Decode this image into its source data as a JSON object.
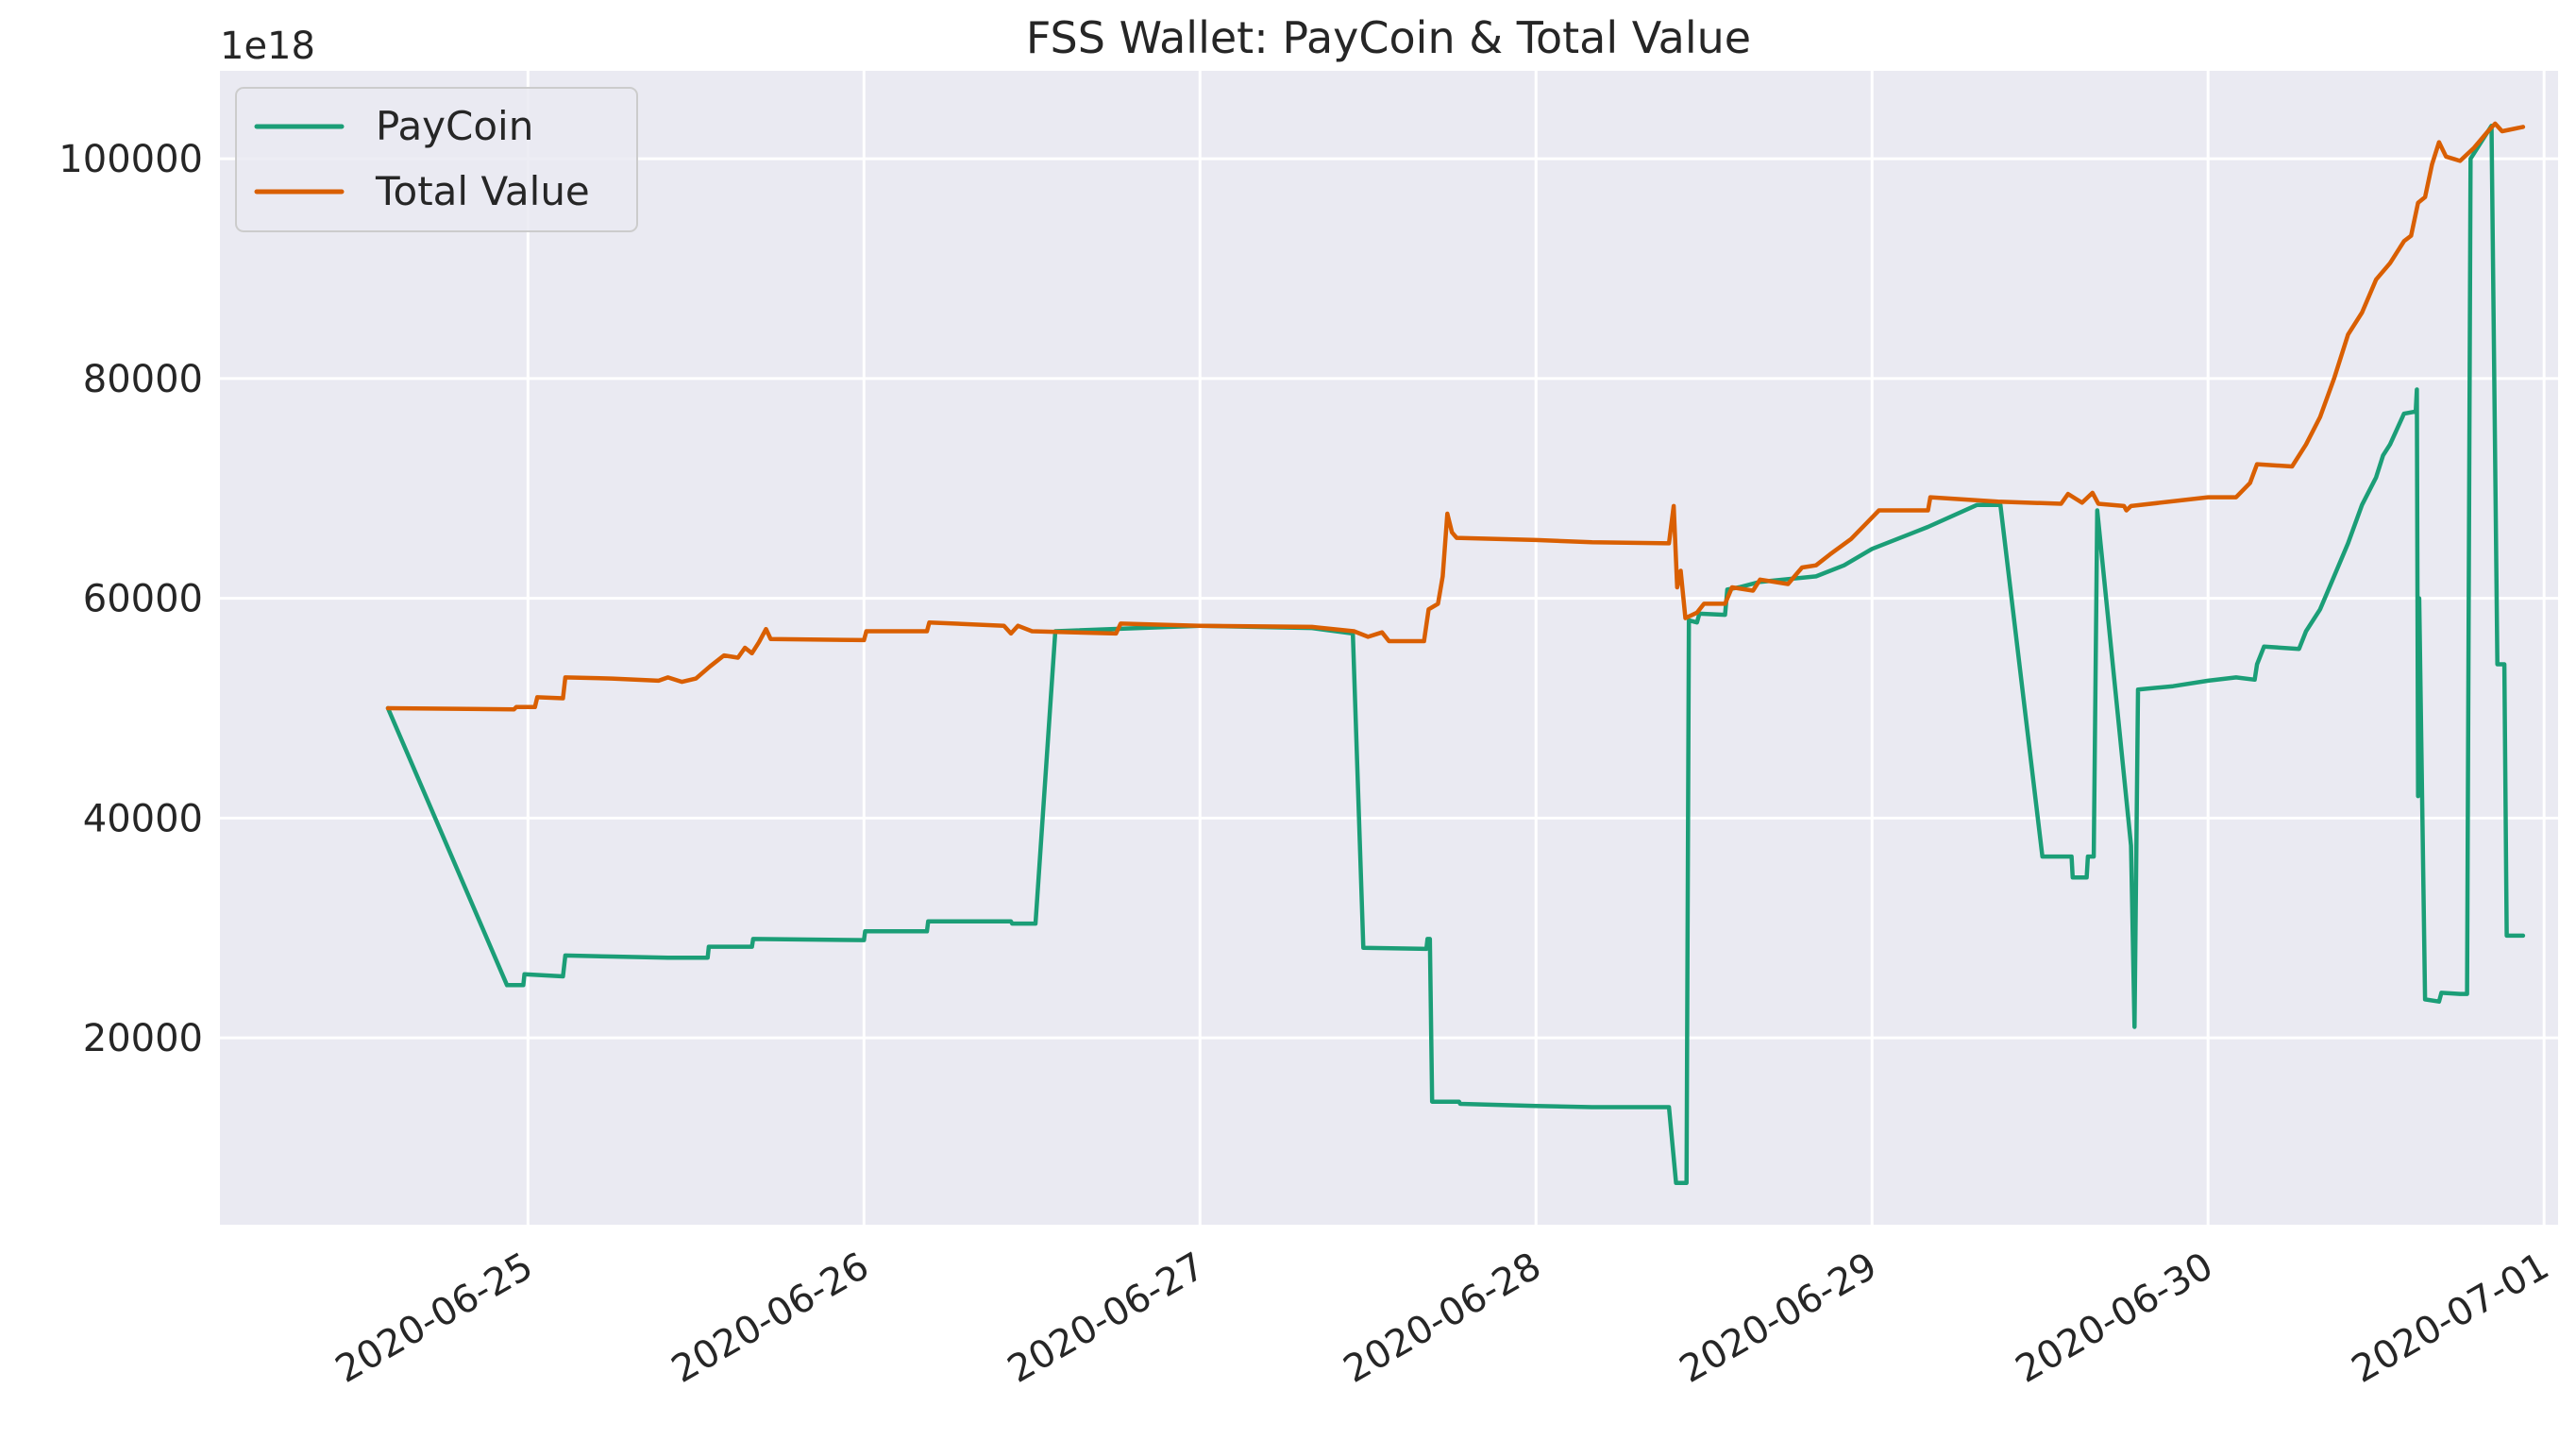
{
  "chart_data": {
    "type": "line",
    "title": "FSS Wallet: PayCoin & Total Value",
    "xlabel": "",
    "ylabel": "",
    "y_multiplier": "1e18",
    "xlim": [
      "2020-06-24T02:00",
      "2020-07-01T01:00"
    ],
    "ylim": [
      3000,
      108000
    ],
    "y_ticks": [
      20000,
      40000,
      60000,
      80000,
      100000
    ],
    "y_tick_labels": [
      "20000",
      "40000",
      "60000",
      "80000",
      "100000"
    ],
    "x_ticks": [
      "2020-06-25",
      "2020-06-26",
      "2020-06-27",
      "2020-06-28",
      "2020-06-29",
      "2020-06-30",
      "2020-07-01"
    ],
    "x_tick_labels": [
      "2020-06-25",
      "2020-06-26",
      "2020-06-27",
      "2020-06-28",
      "2020-06-29",
      "2020-06-30",
      "2020-07-01"
    ],
    "grid": true,
    "legend_position": "top-left",
    "background": "#eaeaf2",
    "series": [
      {
        "name": "PayCoin",
        "color": "#1b9e77",
        "points": [
          [
            "2020-06-24T14:00",
            50000
          ],
          [
            "2020-06-24T22:30",
            24800
          ],
          [
            "2020-06-24T23:40",
            24800
          ],
          [
            "2020-06-24T23:45",
            25800
          ],
          [
            "2020-06-25T02:30",
            25600
          ],
          [
            "2020-06-25T02:40",
            27500
          ],
          [
            "2020-06-25T06:00",
            27400
          ],
          [
            "2020-06-25T10:00",
            27300
          ],
          [
            "2020-06-25T12:50",
            27300
          ],
          [
            "2020-06-25T12:55",
            28300
          ],
          [
            "2020-06-25T16:00",
            28300
          ],
          [
            "2020-06-25T16:05",
            29000
          ],
          [
            "2020-06-26T00:00",
            28900
          ],
          [
            "2020-06-26T00:05",
            29700
          ],
          [
            "2020-06-26T04:30",
            29700
          ],
          [
            "2020-06-26T04:35",
            30600
          ],
          [
            "2020-06-26T10:30",
            30600
          ],
          [
            "2020-06-26T10:35",
            30400
          ],
          [
            "2020-06-26T12:15",
            30400
          ],
          [
            "2020-06-26T13:40",
            57000
          ],
          [
            "2020-06-27T00:00",
            57500
          ],
          [
            "2020-06-27T08:00",
            57300
          ],
          [
            "2020-06-27T10:55",
            56800
          ],
          [
            "2020-06-27T11:40",
            28200
          ],
          [
            "2020-06-27T16:10",
            28100
          ],
          [
            "2020-06-27T16:15",
            29000
          ],
          [
            "2020-06-27T16:25",
            29000
          ],
          [
            "2020-06-27T16:35",
            14200
          ],
          [
            "2020-06-27T18:30",
            14200
          ],
          [
            "2020-06-27T18:35",
            14000
          ],
          [
            "2020-06-28T00:00",
            13800
          ],
          [
            "2020-06-28T04:00",
            13700
          ],
          [
            "2020-06-28T09:30",
            13700
          ],
          [
            "2020-06-28T10:00",
            6800
          ],
          [
            "2020-06-28T10:45",
            6800
          ],
          [
            "2020-06-28T10:55",
            58000
          ],
          [
            "2020-06-28T11:30",
            57800
          ],
          [
            "2020-06-28T11:40",
            58600
          ],
          [
            "2020-06-28T13:30",
            58500
          ],
          [
            "2020-06-28T13:40",
            60800
          ],
          [
            "2020-06-28T14:30",
            61000
          ],
          [
            "2020-06-28T16:00",
            61500
          ],
          [
            "2020-06-28T20:00",
            62000
          ],
          [
            "2020-06-28T22:00",
            63000
          ],
          [
            "2020-06-29T00:00",
            64500
          ],
          [
            "2020-06-29T04:00",
            66500
          ],
          [
            "2020-06-29T07:30",
            68500
          ],
          [
            "2020-06-29T09:10",
            68500
          ],
          [
            "2020-06-29T12:10",
            36500
          ],
          [
            "2020-06-29T14:15",
            36500
          ],
          [
            "2020-06-29T14:20",
            34600
          ],
          [
            "2020-06-29T15:20",
            34600
          ],
          [
            "2020-06-29T15:25",
            36500
          ],
          [
            "2020-06-29T15:50",
            36500
          ],
          [
            "2020-06-29T16:05",
            68000
          ],
          [
            "2020-06-29T18:30",
            37500
          ],
          [
            "2020-06-29T18:45",
            21000
          ],
          [
            "2020-06-29T19:00",
            51700
          ],
          [
            "2020-06-29T21:30",
            52000
          ],
          [
            "2020-06-30T00:00",
            52500
          ],
          [
            "2020-06-30T02:00",
            52800
          ],
          [
            "2020-06-30T03:20",
            52600
          ],
          [
            "2020-06-30T03:30",
            54000
          ],
          [
            "2020-06-30T04:00",
            55600
          ],
          [
            "2020-06-30T06:30",
            55400
          ],
          [
            "2020-06-30T07:00",
            57000
          ],
          [
            "2020-06-30T08:00",
            59000
          ],
          [
            "2020-06-30T09:00",
            62000
          ],
          [
            "2020-06-30T10:00",
            65000
          ],
          [
            "2020-06-30T11:00",
            68500
          ],
          [
            "2020-06-30T12:00",
            71000
          ],
          [
            "2020-06-30T12:30",
            73000
          ],
          [
            "2020-06-30T13:00",
            74000
          ],
          [
            "2020-06-30T14:00",
            76800
          ],
          [
            "2020-06-30T14:50",
            77000
          ],
          [
            "2020-06-30T14:55",
            79000
          ],
          [
            "2020-06-30T15:00",
            42000
          ],
          [
            "2020-06-30T15:05",
            60000
          ],
          [
            "2020-06-30T15:30",
            23500
          ],
          [
            "2020-06-30T16:30",
            23300
          ],
          [
            "2020-06-30T16:40",
            24100
          ],
          [
            "2020-06-30T18:00",
            24000
          ],
          [
            "2020-06-30T18:30",
            24000
          ],
          [
            "2020-06-30T18:45",
            100000
          ],
          [
            "2020-06-30T20:15",
            103000
          ],
          [
            "2020-06-30T20:40",
            54000
          ],
          [
            "2020-06-30T21:10",
            54000
          ],
          [
            "2020-06-30T21:20",
            29300
          ],
          [
            "2020-06-30T22:30",
            29300
          ]
        ]
      },
      {
        "name": "Total Value",
        "color": "#d95f02",
        "points": [
          [
            "2020-06-24T14:00",
            50000
          ],
          [
            "2020-06-24T23:00",
            49900
          ],
          [
            "2020-06-24T23:10",
            50100
          ],
          [
            "2020-06-25T00:30",
            50100
          ],
          [
            "2020-06-25T00:40",
            51000
          ],
          [
            "2020-06-25T02:30",
            50900
          ],
          [
            "2020-06-25T02:40",
            52800
          ],
          [
            "2020-06-25T06:00",
            52700
          ],
          [
            "2020-06-25T09:20",
            52500
          ],
          [
            "2020-06-25T10:00",
            52800
          ],
          [
            "2020-06-25T11:00",
            52400
          ],
          [
            "2020-06-25T12:00",
            52700
          ],
          [
            "2020-06-25T13:00",
            53800
          ],
          [
            "2020-06-25T14:00",
            54800
          ],
          [
            "2020-06-25T15:00",
            54600
          ],
          [
            "2020-06-25T15:30",
            55500
          ],
          [
            "2020-06-25T16:00",
            55000
          ],
          [
            "2020-06-25T16:30",
            56000
          ],
          [
            "2020-06-25T17:00",
            57200
          ],
          [
            "2020-06-25T17:20",
            56300
          ],
          [
            "2020-06-26T00:00",
            56200
          ],
          [
            "2020-06-26T00:10",
            57000
          ],
          [
            "2020-06-26T04:30",
            57000
          ],
          [
            "2020-06-26T04:40",
            57800
          ],
          [
            "2020-06-26T10:00",
            57500
          ],
          [
            "2020-06-26T10:30",
            56800
          ],
          [
            "2020-06-26T11:00",
            57500
          ],
          [
            "2020-06-26T12:00",
            57000
          ],
          [
            "2020-06-26T18:00",
            56800
          ],
          [
            "2020-06-26T18:20",
            57700
          ],
          [
            "2020-06-27T00:00",
            57500
          ],
          [
            "2020-06-27T08:00",
            57400
          ],
          [
            "2020-06-27T11:00",
            57000
          ],
          [
            "2020-06-27T12:00",
            56500
          ],
          [
            "2020-06-27T13:00",
            56900
          ],
          [
            "2020-06-27T13:30",
            56100
          ],
          [
            "2020-06-27T16:00",
            56100
          ],
          [
            "2020-06-27T16:20",
            59000
          ],
          [
            "2020-06-27T17:00",
            59500
          ],
          [
            "2020-06-27T17:20",
            62000
          ],
          [
            "2020-06-27T17:40",
            67700
          ],
          [
            "2020-06-27T18:00",
            66000
          ],
          [
            "2020-06-27T18:20",
            65500
          ],
          [
            "2020-06-28T00:00",
            65300
          ],
          [
            "2020-06-28T04:00",
            65100
          ],
          [
            "2020-06-28T09:30",
            65000
          ],
          [
            "2020-06-28T09:50",
            68400
          ],
          [
            "2020-06-28T10:05",
            61000
          ],
          [
            "2020-06-28T10:20",
            62500
          ],
          [
            "2020-06-28T10:40",
            58200
          ],
          [
            "2020-06-28T11:30",
            58700
          ],
          [
            "2020-06-28T12:00",
            59500
          ],
          [
            "2020-06-28T13:30",
            59500
          ],
          [
            "2020-06-28T14:00",
            61000
          ],
          [
            "2020-06-28T15:30",
            60700
          ],
          [
            "2020-06-28T16:00",
            61700
          ],
          [
            "2020-06-28T18:00",
            61300
          ],
          [
            "2020-06-28T19:00",
            62800
          ],
          [
            "2020-06-28T20:00",
            63000
          ],
          [
            "2020-06-28T21:00",
            64000
          ],
          [
            "2020-06-28T22:30",
            65400
          ],
          [
            "2020-06-28T23:30",
            66700
          ],
          [
            "2020-06-29T00:30",
            68000
          ],
          [
            "2020-06-29T04:00",
            68000
          ],
          [
            "2020-06-29T04:10",
            69200
          ],
          [
            "2020-06-29T09:00",
            68800
          ],
          [
            "2020-06-29T13:30",
            68600
          ],
          [
            "2020-06-29T14:00",
            69500
          ],
          [
            "2020-06-29T15:00",
            68700
          ],
          [
            "2020-06-29T15:45",
            69600
          ],
          [
            "2020-06-29T16:10",
            68600
          ],
          [
            "2020-06-29T18:00",
            68400
          ],
          [
            "2020-06-29T18:10",
            68000
          ],
          [
            "2020-06-29T18:30",
            68400
          ],
          [
            "2020-06-30T00:00",
            69200
          ],
          [
            "2020-06-30T02:00",
            69200
          ],
          [
            "2020-06-30T03:00",
            70500
          ],
          [
            "2020-06-30T03:30",
            72200
          ],
          [
            "2020-06-30T06:00",
            72000
          ],
          [
            "2020-06-30T07:00",
            74000
          ],
          [
            "2020-06-30T08:00",
            76500
          ],
          [
            "2020-06-30T09:00",
            80000
          ],
          [
            "2020-06-30T10:00",
            84000
          ],
          [
            "2020-06-30T11:00",
            86000
          ],
          [
            "2020-06-30T12:00",
            89000
          ],
          [
            "2020-06-30T13:00",
            90500
          ],
          [
            "2020-06-30T14:00",
            92500
          ],
          [
            "2020-06-30T14:30",
            93000
          ],
          [
            "2020-06-30T15:00",
            96000
          ],
          [
            "2020-06-30T15:30",
            96500
          ],
          [
            "2020-06-30T16:00",
            99500
          ],
          [
            "2020-06-30T16:30",
            101500
          ],
          [
            "2020-06-30T17:00",
            100200
          ],
          [
            "2020-06-30T18:00",
            99800
          ],
          [
            "2020-06-30T19:00",
            101000
          ],
          [
            "2020-06-30T20:00",
            102500
          ],
          [
            "2020-06-30T20:30",
            103200
          ],
          [
            "2020-06-30T21:00",
            102500
          ],
          [
            "2020-06-30T22:30",
            102900
          ]
        ]
      }
    ]
  }
}
